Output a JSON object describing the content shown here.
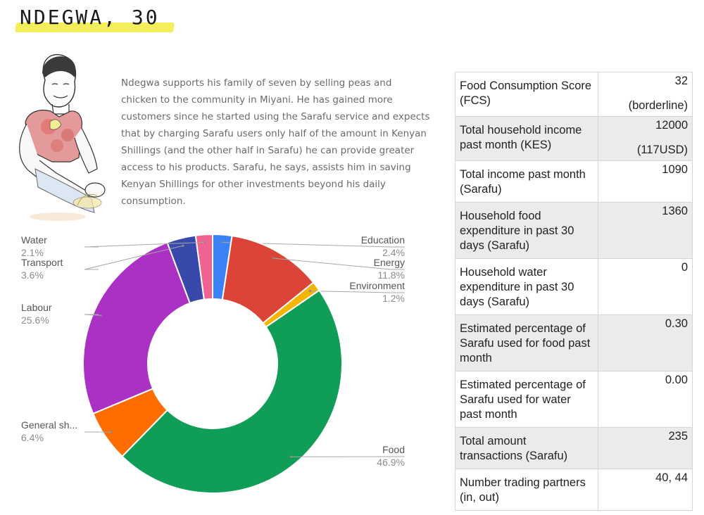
{
  "header": {
    "title": "NDEGWA, 30"
  },
  "intro": {
    "text": "Ndegwa supports his family of seven by selling peas and chicken to the community in Miyani. He has gained more customers since he started using the Sarafu service and expects that by charging Sarafu users only half of the amount in Kenyan Shillings (and the other half in Sarafu) he can provide greater access to his products. Sarafu, he says, assists him in saving Kenyan Shillings for other investments beyond his daily consumption."
  },
  "chart_data": {
    "type": "pie",
    "donut": true,
    "legend": "labels outside slices with leader lines",
    "categories": [
      "Education",
      "Energy",
      "Environment",
      "Food",
      "General sh...",
      "Labour",
      "Transport",
      "Water"
    ],
    "values": [
      2.4,
      11.8,
      1.2,
      46.9,
      6.4,
      25.6,
      3.6,
      2.1
    ],
    "value_labels": [
      "2.4%",
      "11.8%",
      "1.2%",
      "46.9%",
      "6.4%",
      "25.6%",
      "3.6%",
      "2.1%"
    ],
    "colors": [
      "#3b82f6",
      "#db4437",
      "#f4b400",
      "#0f9d58",
      "#ff6d00",
      "#ab30c4",
      "#3949ab",
      "#f06292"
    ]
  },
  "table": {
    "rows": [
      {
        "label": "Food Consumption Score (FCS)",
        "value": "32",
        "value2": "(borderline)"
      },
      {
        "label": "Total household income past month (KES)",
        "value": "12000",
        "value2": "(117USD)"
      },
      {
        "label": "Total income past month (Sarafu)",
        "value": "1090"
      },
      {
        "label": "Household food expenditure in past 30 days (Sarafu)",
        "value": "1360"
      },
      {
        "label": "Household water expenditure in past 30 days (Sarafu)",
        "value": "0"
      },
      {
        "label": "Estimated percentage of Sarafu used for food past month",
        "value": "0.30"
      },
      {
        "label": "Estimated percentage of Sarafu used for water past month",
        "value": "0.00"
      },
      {
        "label": "Total amount transactions (Sarafu)",
        "value": "235"
      },
      {
        "label": "Number trading partners (in, out)",
        "value": "40, 44"
      }
    ]
  }
}
